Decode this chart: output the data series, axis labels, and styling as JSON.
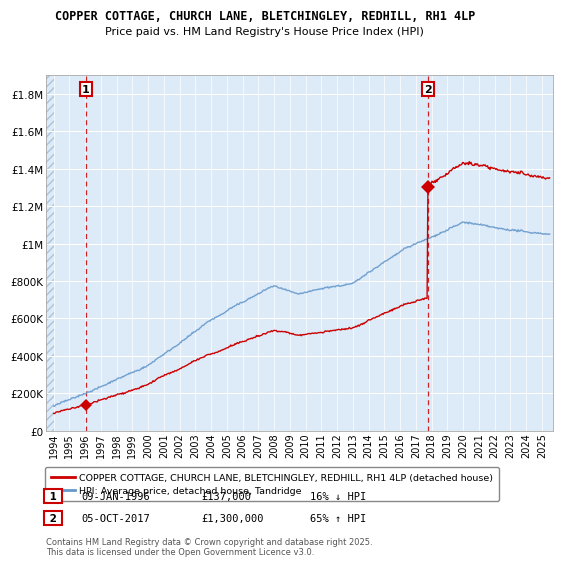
{
  "title1": "COPPER COTTAGE, CHURCH LANE, BLETCHINGLEY, REDHILL, RH1 4LP",
  "title2": "Price paid vs. HM Land Registry's House Price Index (HPI)",
  "bg_color": "#ddeaf7",
  "grid_color": "#ffffff",
  "red_line_color": "#cc0000",
  "blue_line_color": "#6699cc",
  "sale1_year": 1996.03,
  "sale1_price": 137000,
  "sale2_year": 2017.76,
  "sale2_price": 1300000,
  "ylim_max": 1900000,
  "xlim_min": 1993.5,
  "xlim_max": 2025.7,
  "yticks": [
    0,
    200000,
    400000,
    600000,
    800000,
    1000000,
    1200000,
    1400000,
    1600000,
    1800000
  ],
  "ytick_labels": [
    "£0",
    "£200K",
    "£400K",
    "£600K",
    "£800K",
    "£1M",
    "£1.2M",
    "£1.4M",
    "£1.6M",
    "£1.8M"
  ],
  "xticks": [
    1994,
    1995,
    1996,
    1997,
    1998,
    1999,
    2000,
    2001,
    2002,
    2003,
    2004,
    2005,
    2006,
    2007,
    2008,
    2009,
    2010,
    2011,
    2012,
    2013,
    2014,
    2015,
    2016,
    2017,
    2018,
    2019,
    2020,
    2021,
    2022,
    2023,
    2024,
    2025
  ],
  "legend_label1": "COPPER COTTAGE, CHURCH LANE, BLETCHINGLEY, REDHILL, RH1 4LP (detached house)",
  "legend_label2": "HPI: Average price, detached house, Tandridge",
  "note1_date": "09-JAN-1996",
  "note1_price": "£137,000",
  "note1_hpi": "16% ↓ HPI",
  "note2_date": "05-OCT-2017",
  "note2_price": "£1,300,000",
  "note2_hpi": "65% ↑ HPI",
  "footer": "Contains HM Land Registry data © Crown copyright and database right 2025.\nThis data is licensed under the Open Government Licence v3.0."
}
